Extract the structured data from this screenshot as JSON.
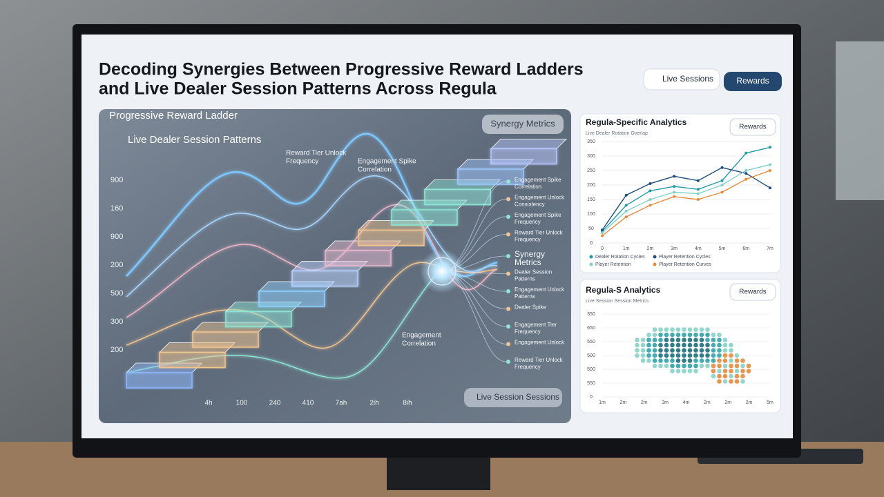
{
  "header": {
    "title_lines": [
      "Decoding Synergies Between Progressive Reward Ladders",
      "and Live Dealer Session Patterns Across Regula"
    ],
    "buttons": [
      "Live Sessions",
      "Rewards"
    ]
  },
  "main_panel": {
    "title": "Progressive Reward Ladder",
    "subtitle": "Live Dealer Session Patterns",
    "badge": "Synergy Metrics",
    "annotations": [
      {
        "lines": [
          "Reward Tier Unlock",
          "Frequency"
        ]
      },
      {
        "lines": [
          "Engagement Spike",
          "Correlation"
        ]
      },
      {
        "lines": [
          "Engagement",
          "Correlation"
        ]
      }
    ],
    "y_labels": [
      "900",
      "160",
      "900",
      "200",
      "500",
      "300",
      "200"
    ],
    "x_labels": [
      "4h",
      "100",
      "240",
      "410",
      "7ah",
      "2ih",
      "8ih"
    ],
    "side_labels": [
      {
        "lines": [
          "Engagement Spike",
          "Correlation"
        ]
      },
      {
        "lines": [
          "Engagement Unlock",
          "Consistency"
        ]
      },
      {
        "lines": [
          "Engagement Spike",
          "Frequency"
        ]
      },
      {
        "lines": [
          "Reward Tier Unlock",
          "Frequency"
        ]
      },
      {
        "lines": [
          "Synergy",
          "Metrics"
        ]
      },
      {
        "lines": [
          "Dealer Session",
          "Patterns"
        ]
      },
      {
        "lines": [
          "Engagement Unlock",
          "Patterns"
        ]
      },
      {
        "lines": [
          "Dealer Spike"
        ]
      },
      {
        "lines": [
          "Engagement Tier",
          "Frequency"
        ]
      },
      {
        "lines": [
          "Engagement Unlock"
        ]
      },
      {
        "lines": [
          "Reward Tier Unlock",
          "Frequency"
        ]
      }
    ],
    "footer_button": "Live Session Sessions"
  },
  "analytics_panel": {
    "title": "Regula-Specific Analytics",
    "subtitle": "Live Dealer Rotation Overlap",
    "button": "Rewards",
    "y_labels": [
      "350",
      "300",
      "250",
      "200",
      "150",
      "100",
      "50",
      "0"
    ],
    "x_labels": [
      "0",
      "1m",
      "2m",
      "3m",
      "4m",
      "5m",
      "6m",
      "7m"
    ],
    "ylim": [
      0,
      350
    ],
    "series": [
      {
        "name": "Dealer Rotation Cycles",
        "color": "#1f9aa8",
        "values": [
          40,
          130,
          180,
          195,
          185,
          215,
          310,
          330
        ]
      },
      {
        "name": "Player Retention Cycles",
        "color": "#1d4e7e",
        "values": [
          45,
          165,
          205,
          230,
          215,
          260,
          240,
          190
        ]
      },
      {
        "name": "Player Retention",
        "color": "#7fd1c8",
        "values": [
          35,
          110,
          150,
          175,
          170,
          200,
          250,
          270
        ]
      },
      {
        "name": "Player Retention Curves",
        "color": "#e8893a",
        "values": [
          25,
          90,
          130,
          160,
          150,
          175,
          220,
          250
        ]
      }
    ]
  },
  "heatmap_panel": {
    "title": "Regula-S Analytics",
    "subtitle": "Live Session Session Metrics",
    "button": "Rewards",
    "y_labels": [
      "350",
      "650",
      "550",
      "500",
      "500",
      "550",
      "0"
    ],
    "x_labels": [
      "1m",
      "2m",
      "2m",
      "3m",
      "4m",
      "2m",
      "2m",
      "2m",
      "5m"
    ]
  }
}
